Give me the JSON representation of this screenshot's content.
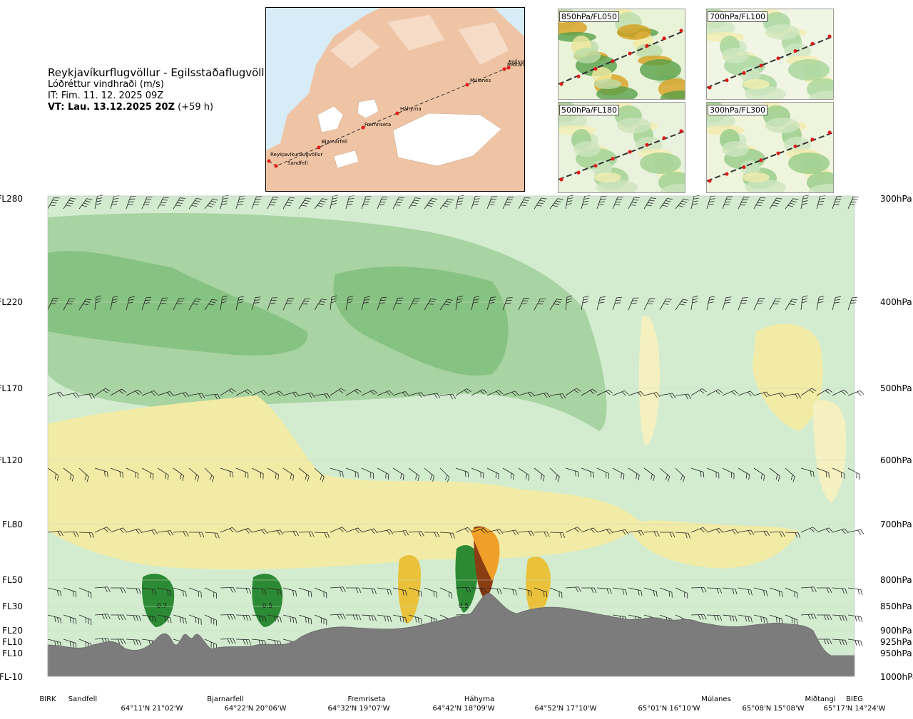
{
  "header": {
    "route": "Reykjavíkurflugvöllur - Egilsstaðaflugvöllur",
    "parameter": "Lóðréttur vindhraði (m/s)",
    "issue_time": "IT: Fim. 11. 12. 2025 09Z",
    "valid_time_bold": "VT: Lau. 13.12.2025 20Z",
    "valid_offset": "(+59 h)"
  },
  "route_map": {
    "points": [
      "Reykjavíkurflugvöllur",
      "Sandfell",
      "Bjarnarfell",
      "Fremriseta",
      "Háhyrna",
      "Múlanes",
      "Miðtangi",
      "Egilsst"
    ]
  },
  "insets": [
    {
      "label": "850hPa/FL050"
    },
    {
      "label": "700hPa/FL100"
    },
    {
      "label": "500hPa/FL180"
    },
    {
      "label": "300hPa/FL300"
    }
  ],
  "chart_data": {
    "type": "heatmap",
    "title": "Lóðréttur vindhraði (m/s)",
    "y_left_flight_levels": [
      "FL280",
      "FL220",
      "FL170",
      "FL120",
      "FL80",
      "FL50",
      "FL30",
      "FL20",
      "FL10",
      "FL10",
      "FL-10"
    ],
    "y_right_pressure": [
      "300hPa",
      "400hPa",
      "500hPa",
      "600hPa",
      "700hPa",
      "800hPa",
      "850hPa",
      "900hPa",
      "925hPa",
      "950hPa",
      "1000hPa"
    ],
    "x_waypoints": [
      "BIRK",
      "Sandfell",
      "Bjarnarfell",
      "Fremriseta",
      "Háhyrna",
      "Múlanes",
      "Miðtangi",
      "BIEG"
    ],
    "x_coordinates": [
      "64°11'N 21°02'W",
      "64°22'N 20°06'W",
      "64°32'N 19°07'W",
      "64°42'N 18°09'W",
      "64°52'N 17°10'W",
      "65°01'N 16°10'W",
      "65°08'N 15°08'W",
      "65°17'N 14°24'W"
    ],
    "annotations": [
      "0.7",
      "0.5",
      "0.5"
    ],
    "legend": "none",
    "grid": true
  }
}
